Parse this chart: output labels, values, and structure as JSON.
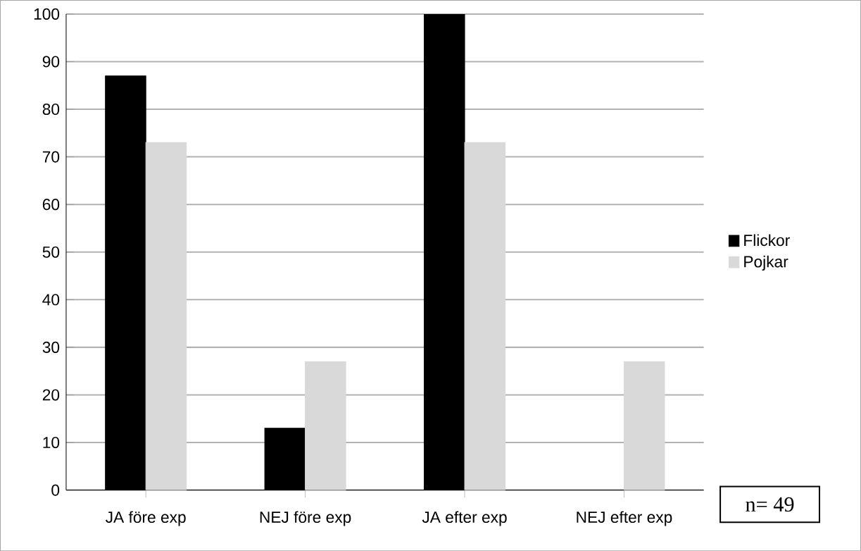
{
  "chart_data": {
    "type": "bar",
    "categories": [
      "JA före exp",
      "NEJ före exp",
      "JA efter exp",
      "NEJ efter exp"
    ],
    "series": [
      {
        "name": "Flickor",
        "color": "#000000",
        "values": [
          87,
          13,
          100,
          0
        ]
      },
      {
        "name": "Pojkar",
        "color": "#d9d9d9",
        "values": [
          73,
          27,
          73,
          27
        ]
      }
    ],
    "ylim": [
      0,
      100
    ],
    "yticks": [
      0,
      10,
      20,
      30,
      40,
      50,
      60,
      70,
      80,
      90,
      100
    ],
    "grid": "y",
    "legend": "right",
    "annotations": [
      "n= 49"
    ]
  }
}
